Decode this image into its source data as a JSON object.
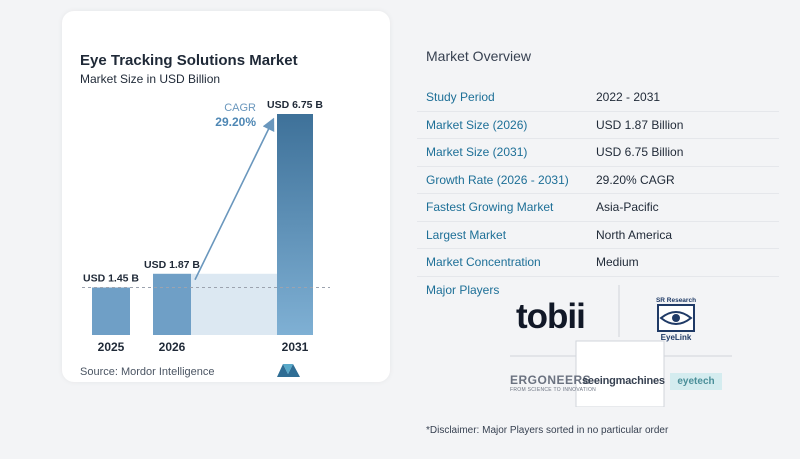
{
  "chart": {
    "title": "Eye Tracking Solutions Market",
    "subtitle": "Market Size in USD Billion",
    "source": "Source:  Mordor Intelligence",
    "cagr_label": "CAGR",
    "cagr_value": "29.20%"
  },
  "chart_data": {
    "type": "bar",
    "title": "Eye Tracking Solutions Market",
    "subtitle": "Market Size in USD Billion",
    "categories": [
      "2025",
      "2026",
      "2031"
    ],
    "values": [
      1.45,
      1.87,
      6.75
    ],
    "value_labels": [
      "USD 1.45 B",
      "USD 1.87 B",
      "USD 6.75 B"
    ],
    "xlabel": "",
    "ylabel": "",
    "ylim": [
      0,
      6.75
    ],
    "grid": false,
    "annotation": "CAGR 29.20%",
    "colors": {
      "bar_light": "#6f9fc6",
      "bar_dark": "#3e7199",
      "shade": "#dce8f2",
      "arrow": "#6a97bd"
    }
  },
  "overview": {
    "title": "Market Overview",
    "rows": [
      {
        "label": "Study Period",
        "value": "2022 - 2031"
      },
      {
        "label": "Market Size (2026)",
        "value": "USD 1.87 Billion"
      },
      {
        "label": "Market Size (2031)",
        "value": "USD 6.75 Billion"
      },
      {
        "label": "Growth Rate (2026 - 2031)",
        "value": "29.20% CAGR"
      },
      {
        "label": "Fastest Growing Market",
        "value": "Asia-Pacific"
      },
      {
        "label": "Largest Market",
        "value": "North America"
      },
      {
        "label": "Market Concentration",
        "value": "Medium"
      }
    ],
    "players_label": "Major Players",
    "players": {
      "tobii": "tobii",
      "sr_research": "SR Research",
      "eyelink": "EyeLink",
      "ergoneers": "ERGONEERS",
      "ergoneers_tagline": "FROM SCIENCE TO INNOVATION",
      "seeing_machines": "seeingmachines",
      "eyetech": "eyetech"
    },
    "disclaimer": "*Disclaimer: Major Players sorted in no particular order"
  },
  "colors": {
    "label": "#1d6f97",
    "divider": "#e5e7eb"
  }
}
